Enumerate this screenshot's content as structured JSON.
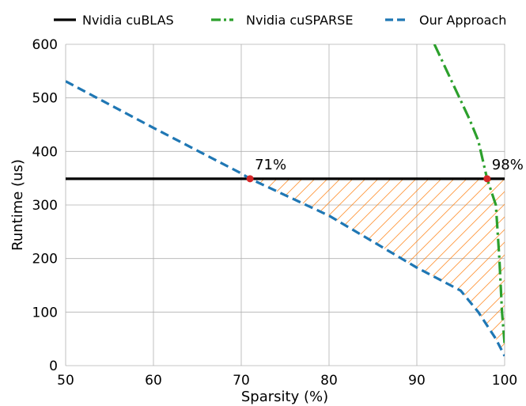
{
  "chart_data": {
    "type": "line",
    "title": "",
    "xlabel": "Sparsity (%)",
    "ylabel": "Runtime (us)",
    "xlim": [
      50,
      100
    ],
    "ylim": [
      0,
      600
    ],
    "x_ticks": [
      50,
      60,
      70,
      80,
      90,
      100
    ],
    "y_ticks": [
      0,
      100,
      200,
      300,
      400,
      500,
      600
    ],
    "grid": true,
    "legend_position": "top",
    "series": [
      {
        "name": "Nvidia cuBLAS",
        "color": "#000000",
        "style": "solid",
        "x": [
          50,
          100
        ],
        "y": [
          349,
          349
        ]
      },
      {
        "name": "Nvidia cuSPARSE",
        "color": "#2ca02c",
        "style": "dashdot",
        "x": [
          92,
          94,
          96,
          97,
          98,
          99,
          99.4,
          99.7,
          100
        ],
        "y": [
          600,
          530,
          460,
          420,
          349,
          300,
          200,
          100,
          40
        ]
      },
      {
        "name": "Our Approach",
        "color": "#1f77b4",
        "style": "dashed",
        "x": [
          50,
          60,
          70,
          71,
          80,
          90,
          95,
          97,
          99,
          100
        ],
        "y": [
          531,
          444,
          359,
          349,
          280,
          183,
          140,
          100,
          50,
          18
        ]
      }
    ],
    "shaded_region": {
      "color": "#ff7f0e",
      "pattern": "hatch",
      "between": [
        "Nvidia cuBLAS",
        "Our Approach"
      ],
      "x_range": [
        71,
        100
      ]
    },
    "annotations": [
      {
        "text": "71%",
        "x": 71,
        "y": 349,
        "marker_color": "#d62728"
      },
      {
        "text": "98%",
        "x": 98,
        "y": 349,
        "marker_color": "#d62728"
      }
    ]
  }
}
